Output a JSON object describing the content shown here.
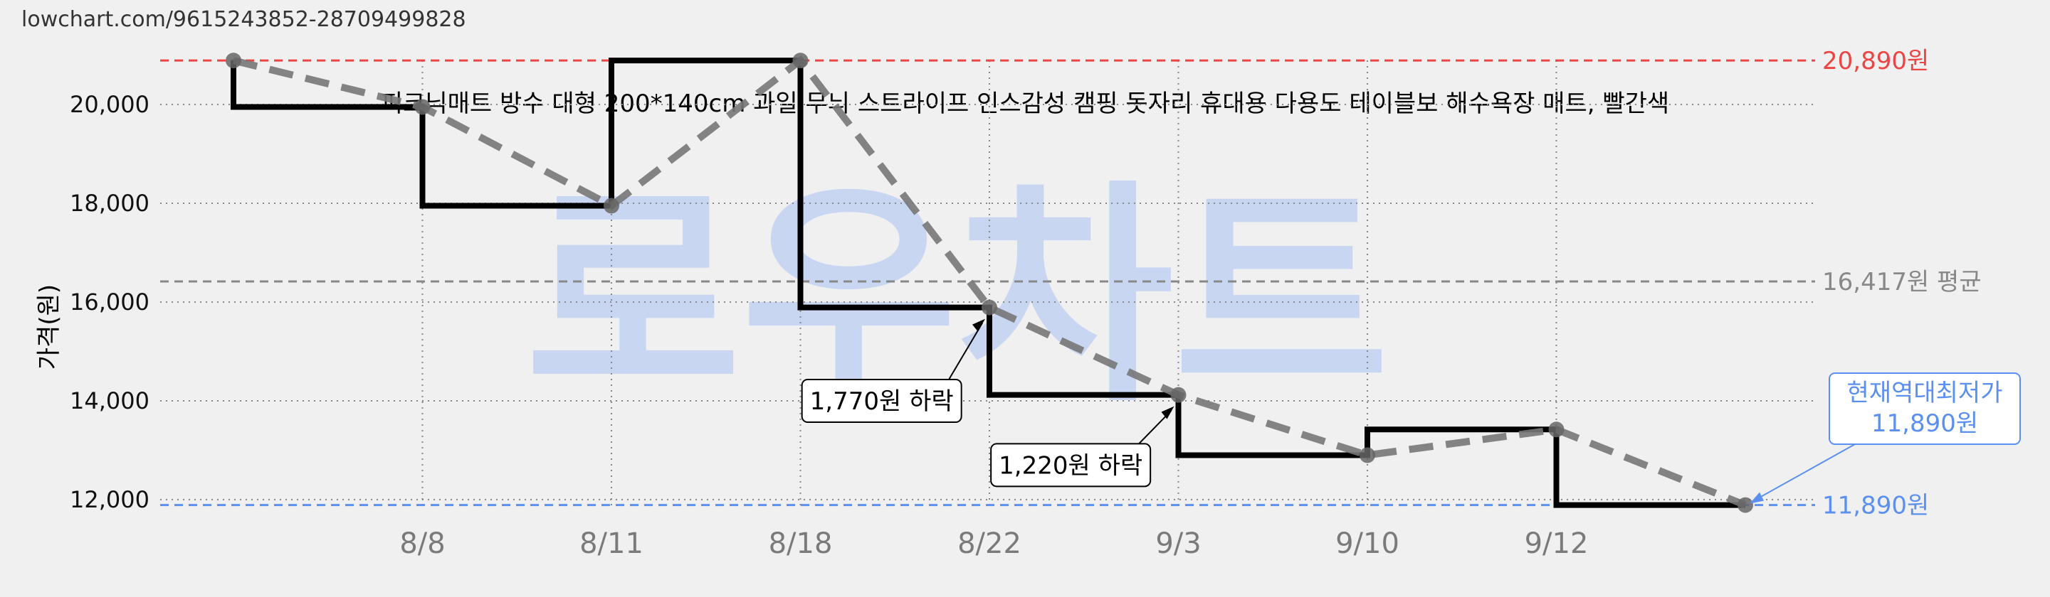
{
  "source_url": "lowchart.com/9615243852-28709499828",
  "watermark": "로우차트",
  "colors": {
    "background": "#f0f0f0",
    "step_line": "#000000",
    "trend_line": "#777777",
    "max_line": "#ee4444",
    "min_line": "#5b8ff0",
    "avg_line": "#888888",
    "watermark": "#c9d6f2",
    "grid": "#888888"
  },
  "chart_data": {
    "type": "line",
    "title": "피크닉매트 방수 대형 200*140cm 과일 무늬 스트라이프 인스감성 캠핑 돗자리 휴대용 다용도 테이블보 해수욕장 매트, 빨간색",
    "ylabel": "가격(원)",
    "xlabel": "",
    "ylim": [
      11800,
      21000
    ],
    "yticks": [
      12000,
      14000,
      16000,
      18000,
      20000
    ],
    "ytick_labels": [
      "12,000",
      "14,000",
      "16,000",
      "18,000",
      "20,000"
    ],
    "x_categories": [
      "",
      "8/8",
      "8/11",
      "8/18",
      "8/22",
      "9/3",
      "9/10",
      "9/12",
      ""
    ],
    "grid": true,
    "step_series": {
      "points": [
        {
          "i": 0,
          "y": 20890
        },
        {
          "i": 0,
          "y": 19950
        },
        {
          "i": 1,
          "y": 19950
        },
        {
          "i": 1,
          "y": 17950
        },
        {
          "i": 2,
          "y": 17950
        },
        {
          "i": 2,
          "y": 20890
        },
        {
          "i": 3,
          "y": 20890
        },
        {
          "i": 3,
          "y": 15890
        },
        {
          "i": 4,
          "y": 15890
        },
        {
          "i": 4,
          "y": 14120
        },
        {
          "i": 5,
          "y": 14120
        },
        {
          "i": 5,
          "y": 12900
        },
        {
          "i": 6,
          "y": 12900
        },
        {
          "i": 6,
          "y": 13420
        },
        {
          "i": 7,
          "y": 13420
        },
        {
          "i": 7,
          "y": 11890
        },
        {
          "i": 8,
          "y": 11890
        }
      ]
    },
    "trend_series": {
      "points": [
        {
          "i": 0,
          "y": 20890
        },
        {
          "i": 1,
          "y": 19950
        },
        {
          "i": 2,
          "y": 17950
        },
        {
          "i": 3,
          "y": 20890
        },
        {
          "i": 4,
          "y": 15890
        },
        {
          "i": 5,
          "y": 14120
        },
        {
          "i": 6,
          "y": 12900
        },
        {
          "i": 7,
          "y": 13420
        },
        {
          "i": 8,
          "y": 11890
        }
      ]
    },
    "reference_lines": [
      {
        "name": "max",
        "value": 20890,
        "label": "20,890원",
        "color": "#ee4444"
      },
      {
        "name": "avg",
        "value": 16417,
        "label": "16,417원 평균",
        "color": "#888888"
      },
      {
        "name": "min",
        "value": 11890,
        "label": "11,890원",
        "color": "#5b8ff0"
      }
    ],
    "annotations": [
      {
        "text": "1,770원 하락",
        "i": 4,
        "y": 15890,
        "box_i": 3.43,
        "box_y": 14000
      },
      {
        "text": "1,220원 하락",
        "i": 5,
        "y": 14120,
        "box_i": 4.43,
        "box_y": 12700
      }
    ],
    "current_callout": {
      "line1": "현재역대최저가",
      "line2": "11,890원",
      "i": 8,
      "y": 11890
    }
  }
}
